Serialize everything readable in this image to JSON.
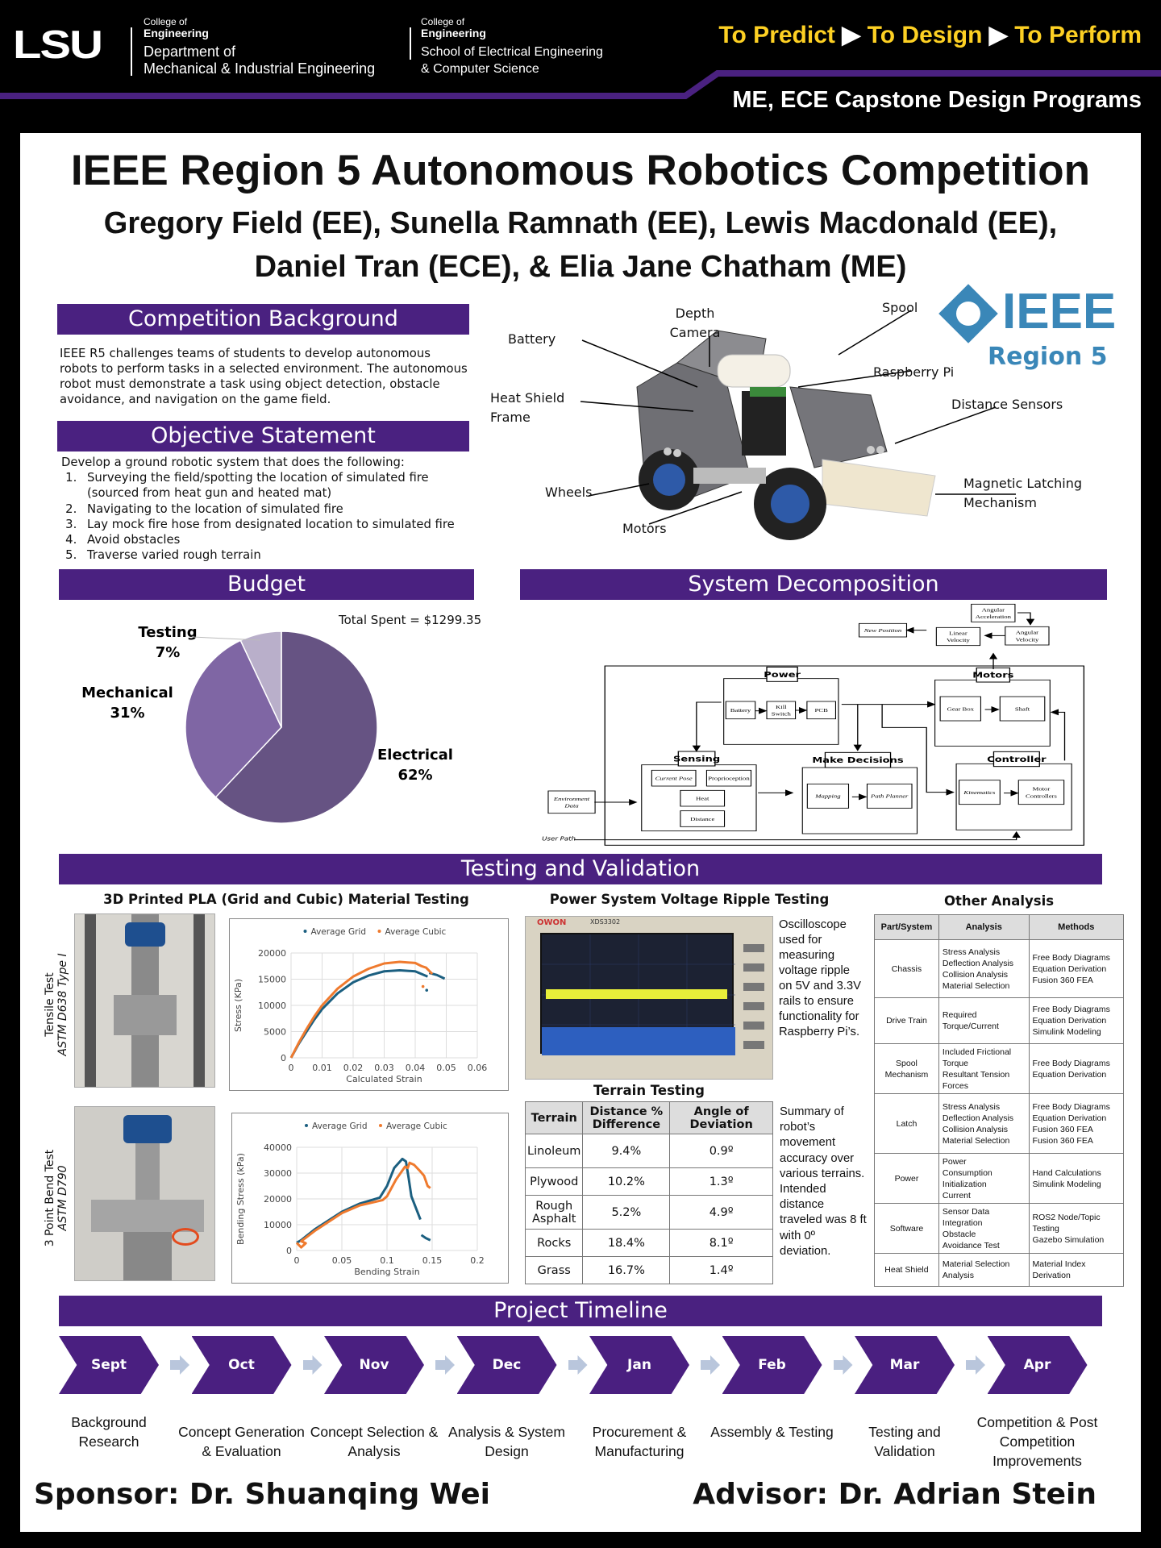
{
  "header": {
    "logo": "LSU",
    "college1_line1": "College of",
    "college1_line2": "Engineering",
    "dept1_line1": "Department of",
    "dept1_line2": "Mechanical & Industrial Engineering",
    "college2_line1": "College of",
    "college2_line2": "Engineering",
    "dept2_line1": "School of Electrical Engineering",
    "dept2_line2": "& Computer Science",
    "tagline": [
      "To Predict",
      "To Design",
      "To Perform"
    ],
    "program": "ME, ECE Capstone Design Programs",
    "colors": {
      "purple": "#461d7c",
      "gold": "#fdd023"
    }
  },
  "title": "IEEE Region 5 Autonomous Robotics Competition",
  "authors_line1": "Gregory Field (EE), Sunella Ramnath (EE), Lewis Macdonald (EE),",
  "authors_line2": "Daniel Tran (ECE), & Elia Jane Chatham (ME)",
  "background": {
    "heading": "Competition Background",
    "text": "IEEE R5 challenges teams of students to develop autonomous robots to perform tasks in a selected environment. The autonomous robot must demonstrate a task using object detection, obstacle avoidance, and navigation on the game field."
  },
  "objective": {
    "heading": "Objective Statement",
    "intro": "Develop a ground robotic system that does the following:",
    "items": [
      "Surveying the field/spotting the location of simulated fire (sourced from heat gun and heated mat)",
      "Navigating to the location of simulated fire",
      "Lay mock fire hose from designated location to simulated fire",
      "Avoid obstacles",
      "Traverse varied rough terrain"
    ]
  },
  "robot": {
    "labels": {
      "battery": "Battery",
      "depth_camera_1": "Depth",
      "depth_camera_2": "Camera",
      "spool": "Spool",
      "raspberry_pi": "Raspberry Pi",
      "heat_shield_1": "Heat Shield",
      "heat_shield_2": "Frame",
      "distance_sensors": "Distance Sensors",
      "wheels": "Wheels",
      "motors": "Motors",
      "latch_1": "Magnetic Latching",
      "latch_2": "Mechanism"
    }
  },
  "ieee_logo": {
    "text": "IEEE",
    "sub": "Region 5",
    "color": "#3a87b8"
  },
  "budget": {
    "heading": "Budget",
    "total": "Total Spent = $1299.35"
  },
  "chart_data": [
    {
      "type": "pie",
      "title": "",
      "slices": [
        {
          "label": "Electrical",
          "value": 62,
          "display": "62%",
          "color": "#665383"
        },
        {
          "label": "Mechanical",
          "value": 31,
          "display": "31%",
          "color": "#7f66a4"
        },
        {
          "label": "Testing",
          "value": 7,
          "display": "7%",
          "color": "#b9afca"
        }
      ]
    },
    {
      "type": "scatter",
      "title": "",
      "xlabel": "Calculated Strain",
      "ylabel": "Stress (KPa)",
      "xlim": [
        0,
        0.06
      ],
      "ylim": [
        0,
        20000
      ],
      "xticks": [
        "0",
        "0.01",
        "0.02",
        "0.03",
        "0.04",
        "0.05",
        "0.06"
      ],
      "yticks": [
        "0",
        "5000",
        "10000",
        "15000",
        "20000"
      ],
      "grid": true,
      "legend": "top",
      "series": [
        {
          "name": "Average Grid",
          "color": "#1b5f80",
          "points": [
            [
              0,
              0
            ],
            [
              0.0025,
              2700
            ],
            [
              0.005,
              5000
            ],
            [
              0.0075,
              7300
            ],
            [
              0.01,
              9300
            ],
            [
              0.015,
              12300
            ],
            [
              0.02,
              14400
            ],
            [
              0.025,
              15700
            ],
            [
              0.03,
              16500
            ],
            [
              0.035,
              16700
            ],
            [
              0.04,
              16500
            ],
            [
              0.044,
              15500
            ]
          ],
          "points2": [
            [
              0.0445,
              16200
            ],
            [
              0.047,
              15800
            ],
            [
              0.0495,
              15100
            ]
          ],
          "outliers": [
            [
              0.0437,
              12900
            ]
          ]
        },
        {
          "name": "Average Cubic",
          "color": "#ef7a2e",
          "points": [
            [
              0,
              0
            ],
            [
              0.0025,
              2900
            ],
            [
              0.005,
              5500
            ],
            [
              0.0075,
              7900
            ],
            [
              0.01,
              10000
            ],
            [
              0.015,
              13200
            ],
            [
              0.02,
              15500
            ],
            [
              0.025,
              17000
            ],
            [
              0.03,
              18000
            ],
            [
              0.035,
              18300
            ],
            [
              0.04,
              18100
            ],
            [
              0.042,
              17500
            ],
            [
              0.0435,
              17200
            ],
            [
              0.0455,
              16000
            ]
          ],
          "points2": [],
          "outliers": [
            [
              0.0425,
              13600
            ]
          ]
        }
      ]
    },
    {
      "type": "scatter",
      "title": "",
      "xlabel": "Bending Strain",
      "ylabel": "Bending Stress (kPa)",
      "xlim": [
        0,
        0.2
      ],
      "ylim": [
        0,
        40000
      ],
      "xticks": [
        "0",
        "0.05",
        "0.1",
        "0.15",
        "0.2"
      ],
      "yticks": [
        "0",
        "10000",
        "20000",
        "30000",
        "40000"
      ],
      "grid": true,
      "legend": "top",
      "series": [
        {
          "name": "Average Grid",
          "color": "#1b5f80",
          "points": [
            [
              0,
              3000
            ],
            [
              0.005,
              4000
            ],
            [
              0.02,
              8200
            ],
            [
              0.05,
              15000
            ],
            [
              0.07,
              18200
            ],
            [
              0.092,
              20500
            ],
            [
              0.1,
              25000
            ],
            [
              0.108,
              32000
            ],
            [
              0.117,
              35500
            ],
            [
              0.121,
              34500
            ],
            [
              0.124,
              28000
            ],
            [
              0.127,
              21000
            ],
            [
              0.132,
              16500
            ],
            [
              0.137,
              12000
            ]
          ],
          "points2": [
            [
              0.138,
              6000
            ],
            [
              0.143,
              4800
            ],
            [
              0.148,
              4000
            ]
          ],
          "outliers": []
        },
        {
          "name": "Average Cubic",
          "color": "#ef7a2e",
          "points": [
            [
              0,
              3000
            ],
            [
              0.005,
              1200
            ],
            [
              0.01,
              2800
            ],
            [
              0.005,
              3600
            ],
            [
              0.02,
              7600
            ],
            [
              0.05,
              14500
            ],
            [
              0.07,
              17500
            ],
            [
              0.095,
              19500
            ],
            [
              0.1,
              21000
            ],
            [
              0.11,
              27500
            ],
            [
              0.12,
              32500
            ],
            [
              0.123,
              32000
            ],
            [
              0.125,
              34000
            ],
            [
              0.13,
              33200
            ],
            [
              0.136,
              31000
            ],
            [
              0.141,
              29000
            ],
            [
              0.145,
              25000
            ],
            [
              0.148,
              24200
            ]
          ],
          "points2": [],
          "outliers": []
        }
      ]
    }
  ],
  "sysdecomp": {
    "heading": "System Decomposition",
    "blocks": {
      "power": "Power",
      "battery": "Battery",
      "kill1": "Kill",
      "kill2": "Switch",
      "pcb": "PCB",
      "motors": "Motors",
      "gearbox": "Gear Box",
      "shaft": "Shaft",
      "sensing": "Sensing",
      "current_pose": "Current Pose",
      "proprioception": "Proprioception",
      "heat": "Heat",
      "distance": "Distance",
      "decisions": "Make Decisions",
      "mapping": "Mapping",
      "path_planner": "Path Planner",
      "controller": "Controller",
      "kinematics": "Kinematics",
      "motor_ctrl1": "Motor",
      "motor_ctrl2": "Controllers",
      "env1": "Environment",
      "env2": "Data",
      "user_path": "User Path",
      "new_position": "New Position",
      "lin1": "Linear",
      "lin2": "Velocity",
      "ang1": "Angular",
      "ang2": "Velocity",
      "acc1": "Angular",
      "acc2": "Acceleration"
    }
  },
  "testing": {
    "heading": "Testing and Validation",
    "material_title": "3D Printed PLA (Grid and Cubic) Material Testing",
    "tensile_label": "Tensile Test",
    "tensile_std": "ASTM D638 Type I",
    "bend_label": "3 Point Bend Test",
    "bend_std": "ASTM D790",
    "power_title": "Power System Voltage Ripple Testing",
    "osc_brand": "OWON",
    "osc_model": "XDS3302",
    "power_text": "Oscilloscope used for measuring voltage ripple on 5V and 3.3V rails to ensure functionality for Raspberry Pi’s.",
    "terrain_title": "Terrain Testing",
    "terrain_headers": [
      "Terrain",
      "Distance % Difference",
      "Angle of Deviation"
    ],
    "terrain_rows": [
      [
        "Linoleum",
        "9.4%",
        "0.9º"
      ],
      [
        "Plywood",
        "10.2%",
        "1.3º"
      ],
      [
        "Rough Asphalt",
        "5.2%",
        "4.9º"
      ],
      [
        "Rocks",
        "18.4%",
        "8.1º"
      ],
      [
        "Grass",
        "16.7%",
        "1.4º"
      ]
    ],
    "terrain_text": "Summary of robot’s movement accuracy over various terrains. Intended distance traveled was 8 ft with 0º deviation.",
    "other_title": "Other Analysis",
    "other_headers": [
      "Part/System",
      "Analysis",
      "Methods"
    ],
    "other_rows": [
      [
        "Chassis",
        "Stress Analysis\nDeflection Analysis\nCollision Analysis\nMaterial Selection",
        "Free Body Diagrams\nEquation Derivation\nFusion 360 FEA"
      ],
      [
        "Drive Train",
        "Required\nTorque/Current",
        "Free Body Diagrams\nEquation Derivation\nSimulink Modeling"
      ],
      [
        "Spool\nMechanism",
        "Included Frictional\nTorque\nResultant Tension\nForces",
        "Free Body Diagrams\nEquation Derivation"
      ],
      [
        "Latch",
        "Stress Analysis\nDeflection Analysis\nCollision Analysis\nMaterial Selection",
        "Free Body Diagrams\nEquation Derivation\nFusion 360 FEA\nFusion 360 FEA"
      ],
      [
        "Power",
        "Power\nConsumption\nInitialization\nCurrent",
        "Hand Calculations\nSimulink Modeling"
      ],
      [
        "Software",
        "Sensor Data\nIntegration\nObstacle\nAvoidance Test",
        "ROS2 Node/Topic\nTesting\nGazebo Simulation"
      ],
      [
        "Heat Shield",
        "Material Selection\nAnalysis",
        "Material Index\nDerivation"
      ]
    ]
  },
  "timeline": {
    "heading": "Project Timeline",
    "steps": [
      {
        "month": "Sept",
        "label": "Background Research"
      },
      {
        "month": "Oct",
        "label": "Concept Generation & Evaluation"
      },
      {
        "month": "Nov",
        "label": "Concept Selection & Analysis"
      },
      {
        "month": "Dec",
        "label": "Analysis & System Design"
      },
      {
        "month": "Jan",
        "label": "Procurement & Manufacturing"
      },
      {
        "month": "Feb",
        "label": "Assembly & Testing"
      },
      {
        "month": "Mar",
        "label": "Testing and Validation"
      },
      {
        "month": "Apr",
        "label": "Competition & Post Competition Improvements"
      }
    ]
  },
  "sponsor": "Sponsor: Dr. Shuanqing Wei",
  "advisor": "Advisor: Dr. Adrian Stein"
}
